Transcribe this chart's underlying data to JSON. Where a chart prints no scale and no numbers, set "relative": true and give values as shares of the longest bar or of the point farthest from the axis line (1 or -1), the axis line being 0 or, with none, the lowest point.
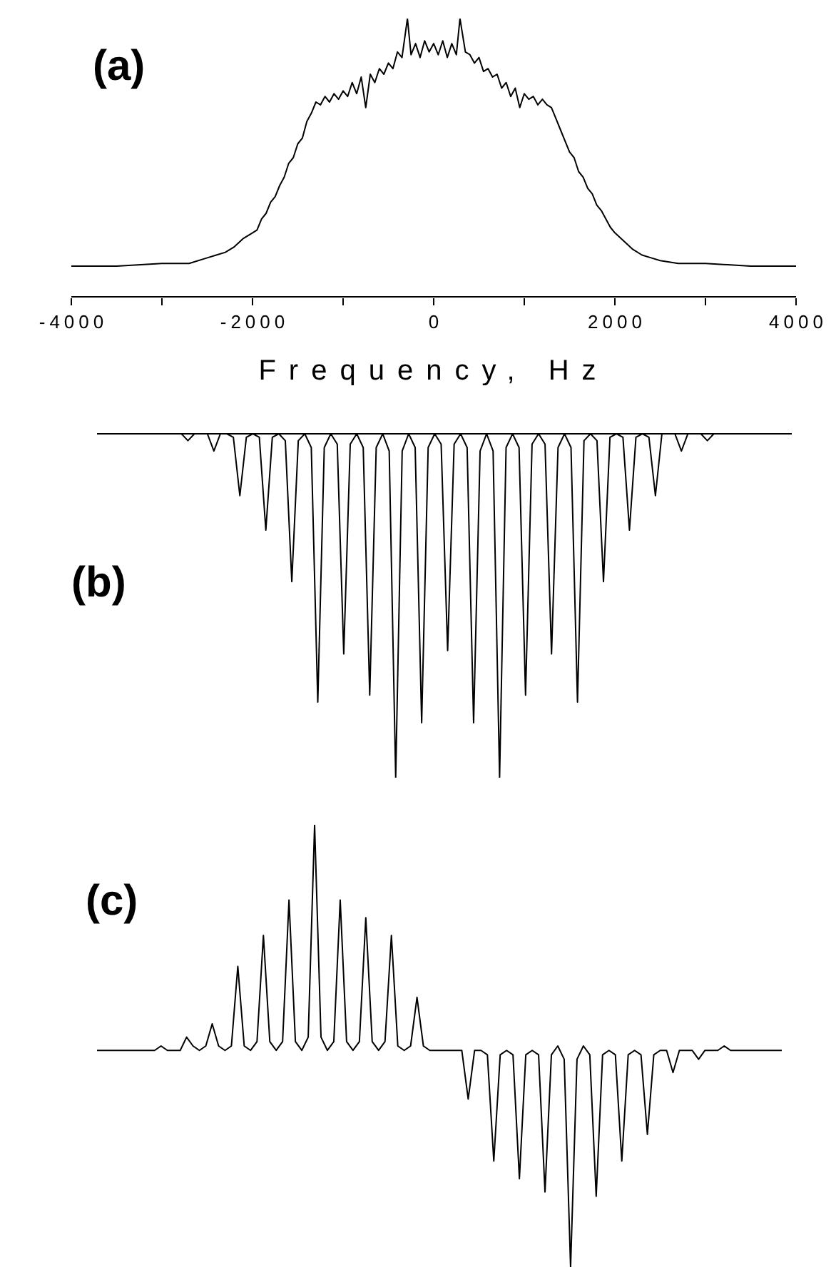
{
  "chart_data": [
    {
      "type": "line",
      "title": "(a)",
      "xlabel": "Frequency, Hz",
      "relative": true,
      "tick_labels": "x",
      "xlim": [
        -4000,
        4000
      ],
      "xticks": [
        -4000,
        {
          "value": -3000,
          "label": null
        },
        -2000,
        {
          "value": -1000,
          "label": null
        },
        0,
        {
          "value": 1000,
          "label": null
        },
        2000,
        {
          "value": 3000,
          "label": null
        },
        4000
      ],
      "x": [
        -4000,
        -3500,
        -3000,
        -2700,
        -2500,
        -2400,
        -2300,
        -2200,
        -2100,
        -2000,
        -1950,
        -1900,
        -1850,
        -1800,
        -1750,
        -1700,
        -1650,
        -1600,
        -1550,
        -1500,
        -1450,
        -1400,
        -1350,
        -1300,
        -1250,
        -1200,
        -1150,
        -1100,
        -1050,
        -1000,
        -950,
        -900,
        -850,
        -800,
        -750,
        -700,
        -650,
        -600,
        -550,
        -500,
        -450,
        -400,
        -350,
        -290,
        -250,
        -200,
        -150,
        -100,
        -50,
        0,
        50,
        100,
        150,
        200,
        250,
        290,
        350,
        400,
        450,
        500,
        550,
        600,
        650,
        700,
        750,
        800,
        850,
        900,
        950,
        1000,
        1050,
        1100,
        1150,
        1200,
        1250,
        1300,
        1350,
        1400,
        1450,
        1500,
        1550,
        1600,
        1650,
        1700,
        1750,
        1800,
        1850,
        1900,
        1950,
        2000,
        2100,
        2200,
        2300,
        2400,
        2500,
        2700,
        3000,
        3500,
        4000
      ],
      "series": [
        {
          "color": "#000000",
          "values": [
            0.11,
            0.11,
            0.12,
            0.12,
            0.14,
            0.15,
            0.16,
            0.18,
            0.21,
            0.23,
            0.24,
            0.28,
            0.3,
            0.34,
            0.36,
            0.4,
            0.43,
            0.48,
            0.5,
            0.55,
            0.57,
            0.63,
            0.66,
            0.7,
            0.69,
            0.72,
            0.7,
            0.73,
            0.71,
            0.74,
            0.72,
            0.77,
            0.73,
            0.79,
            0.68,
            0.8,
            0.77,
            0.82,
            0.8,
            0.84,
            0.82,
            0.88,
            0.86,
            1,
            0.87,
            0.91,
            0.86,
            0.92,
            0.88,
            0.91,
            0.87,
            0.92,
            0.86,
            0.91,
            0.87,
            1,
            0.88,
            0.87,
            0.84,
            0.86,
            0.81,
            0.82,
            0.79,
            0.8,
            0.75,
            0.77,
            0.72,
            0.75,
            0.68,
            0.73,
            0.71,
            0.72,
            0.69,
            0.71,
            0.69,
            0.68,
            0.64,
            0.6,
            0.56,
            0.52,
            0.5,
            0.45,
            0.43,
            0.39,
            0.37,
            0.33,
            0.31,
            0.28,
            0.25,
            0.23,
            0.2,
            0.17,
            0.15,
            0.14,
            0.13,
            0.12,
            0.12,
            0.11,
            0.11
          ]
        }
      ]
    },
    {
      "type": "line",
      "title": "(b)",
      "relative": true,
      "tick_labels": false,
      "categories": [
        null,
        null,
        null,
        null,
        null,
        null,
        null,
        null,
        null,
        null,
        null,
        null,
        null,
        null,
        null,
        null,
        null,
        null,
        null,
        null,
        null,
        null,
        null,
        null,
        null,
        null,
        null,
        null,
        null,
        null,
        null,
        null,
        null,
        null,
        null,
        null,
        null,
        null,
        null,
        null,
        null,
        null,
        null,
        null,
        null,
        null,
        null,
        null,
        null,
        null,
        null,
        null,
        null,
        null,
        null,
        null,
        null,
        null,
        null,
        null,
        null,
        null,
        null,
        null,
        null,
        null,
        null,
        null,
        null,
        null,
        null,
        null,
        null,
        null,
        null,
        null,
        null,
        null,
        null,
        null,
        null,
        null,
        null,
        null,
        null,
        null,
        null,
        null,
        null,
        null,
        null,
        null,
        null,
        null,
        null,
        null,
        null,
        null,
        null,
        null,
        null,
        null,
        null,
        null,
        null,
        null,
        null,
        null
      ],
      "series": [
        {
          "color": "#000000",
          "values": [
            0,
            0,
            0,
            0,
            0,
            0,
            0,
            0,
            0,
            0,
            0,
            0,
            0,
            0,
            -0.02,
            0,
            0,
            0,
            -0.05,
            0,
            0,
            -0.01,
            -0.18,
            -0.01,
            0,
            -0.01,
            -0.28,
            -0.01,
            0,
            -0.02,
            -0.43,
            -0.02,
            0,
            -0.04,
            -0.78,
            -0.04,
            0,
            -0.03,
            -0.64,
            -0.03,
            0,
            -0.04,
            -0.76,
            -0.04,
            0,
            -0.05,
            -1,
            -0.05,
            0,
            -0.04,
            -0.84,
            -0.04,
            0,
            -0.03,
            -0.63,
            -0.03,
            0,
            -0.04,
            -0.84,
            -0.05,
            0,
            -0.05,
            -1,
            -0.04,
            0,
            -0.04,
            -0.76,
            -0.03,
            0,
            -0.03,
            -0.64,
            -0.04,
            0,
            -0.04,
            -0.78,
            -0.02,
            0,
            -0.02,
            -0.43,
            -0.01,
            0,
            -0.01,
            -0.28,
            -0.01,
            0,
            -0.01,
            -0.18,
            0,
            0,
            0,
            -0.05,
            0,
            0,
            0,
            -0.02,
            0,
            0,
            0,
            0,
            0,
            0,
            0,
            0,
            0,
            0,
            0,
            0,
            0
          ]
        }
      ]
    },
    {
      "type": "line",
      "title": "(c)",
      "relative": true,
      "tick_labels": false,
      "categories": [
        null,
        null,
        null,
        null,
        null,
        null,
        null,
        null,
        null,
        null,
        null,
        null,
        null,
        null,
        null,
        null,
        null,
        null,
        null,
        null,
        null,
        null,
        null,
        null,
        null,
        null,
        null,
        null,
        null,
        null,
        null,
        null,
        null,
        null,
        null,
        null,
        null,
        null,
        null,
        null,
        null,
        null,
        null,
        null,
        null,
        null,
        null,
        null,
        null,
        null,
        null,
        null,
        null,
        null,
        null,
        null,
        null,
        null,
        null,
        null,
        null,
        null,
        null,
        null,
        null,
        null,
        null,
        null,
        null,
        null,
        null,
        null,
        null,
        null,
        null,
        null,
        null,
        null,
        null,
        null,
        null,
        null,
        null,
        null,
        null,
        null,
        null,
        null,
        null,
        null,
        null,
        null,
        null,
        null,
        null,
        null,
        null,
        null,
        null,
        null,
        null,
        null,
        null,
        null,
        null,
        null,
        null,
        null
      ],
      "series": [
        {
          "color": "#000000",
          "values": [
            0.49,
            0.49,
            0.49,
            0.49,
            0.49,
            0.49,
            0.49,
            0.49,
            0.49,
            0.49,
            0.5,
            0.49,
            0.49,
            0.49,
            0.52,
            0.5,
            0.49,
            0.5,
            0.55,
            0.5,
            0.49,
            0.5,
            0.68,
            0.5,
            0.49,
            0.51,
            0.75,
            0.51,
            0.49,
            0.51,
            0.83,
            0.51,
            0.49,
            0.52,
            1,
            0.52,
            0.49,
            0.51,
            0.83,
            0.51,
            0.49,
            0.51,
            0.79,
            0.51,
            0.49,
            0.51,
            0.75,
            0.5,
            0.49,
            0.5,
            0.61,
            0.5,
            0.49,
            0.49,
            0.49,
            0.49,
            0.49,
            0.49,
            0.38,
            0.49,
            0.49,
            0.48,
            0.24,
            0.48,
            0.49,
            0.48,
            0.2,
            0.48,
            0.49,
            0.48,
            0.17,
            0.48,
            0.5,
            0.47,
            0,
            0.47,
            0.5,
            0.48,
            0.16,
            0.48,
            0.49,
            0.48,
            0.24,
            0.48,
            0.49,
            0.48,
            0.3,
            0.48,
            0.49,
            0.49,
            0.44,
            0.49,
            0.49,
            0.49,
            0.47,
            0.49,
            0.49,
            0.49,
            0.5,
            0.49,
            0.49,
            0.49,
            0.49,
            0.49,
            0.49,
            0.49,
            0.49,
            0.49
          ]
        }
      ]
    }
  ]
}
